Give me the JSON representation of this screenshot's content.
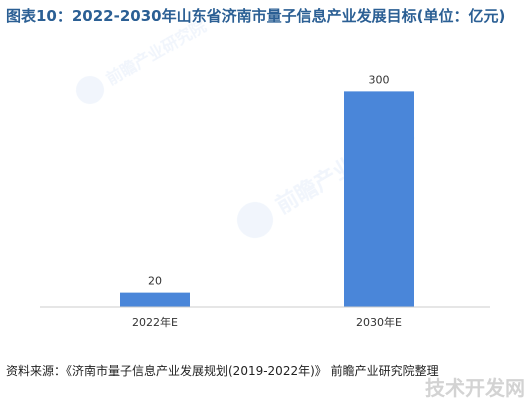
{
  "title": "图表10：2022-2030年山东省济南市量子信息产业发展目标(单位：亿元)",
  "source": "资料来源：《济南市量子信息产业发展规划(2019-2022年)》 前瞻产业研究院整理",
  "watermark": {
    "logo_text": "前瞻产业研究院",
    "corner_text": "技术开发网"
  },
  "colors": {
    "title": "#2b5f94",
    "bar": "#4a86d9",
    "axis": "#cccccc"
  },
  "chart_data": {
    "type": "bar",
    "categories": [
      "2022年E",
      "2030年E"
    ],
    "values": [
      20,
      300
    ],
    "data_labels": [
      "20",
      "300"
    ],
    "ylim": [
      0,
      320
    ],
    "grid": false,
    "legend": "none"
  }
}
